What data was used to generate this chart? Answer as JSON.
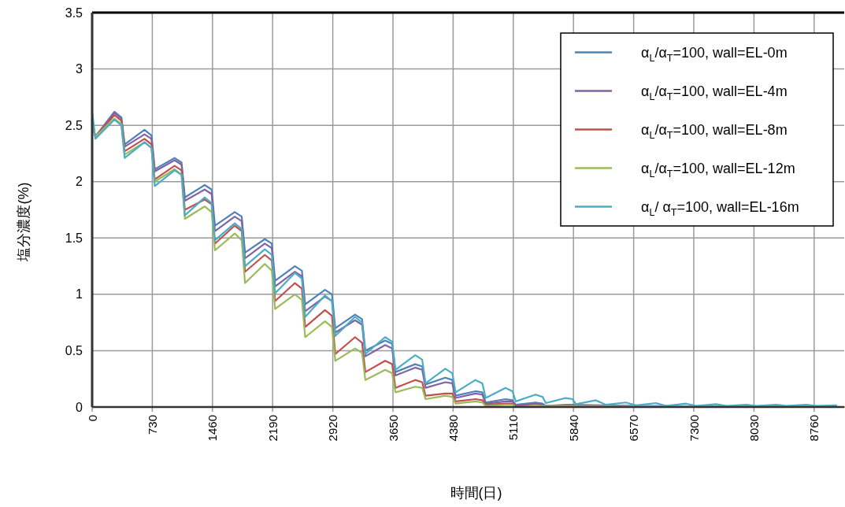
{
  "chart_data": {
    "type": "line",
    "xlabel": "時間(日)",
    "ylabel": "塩分濃度(%)",
    "xlim": [
      0,
      9125
    ],
    "ylim": [
      0,
      3.5
    ],
    "xticks": [
      0,
      730,
      1460,
      2190,
      2920,
      3650,
      4380,
      5110,
      5840,
      6570,
      7300,
      8030,
      8760
    ],
    "yticks": [
      0,
      0.5,
      1,
      1.5,
      2,
      2.5,
      3,
      3.5
    ],
    "grid": true,
    "legend": "top right",
    "series": [
      {
        "name": "α$_{L}$/α$_{T}$=100, wall=EL-0m",
        "color": "#4f81bd",
        "x": [
          0,
          40,
          270,
          355,
          395,
          635,
          720,
          760,
          1000,
          1085,
          1125,
          1365,
          1450,
          1490,
          1730,
          1815,
          1855,
          2095,
          2180,
          2220,
          2460,
          2545,
          2585,
          2825,
          2910,
          2950,
          3190,
          3275,
          3315,
          3555,
          3640,
          3680,
          3920,
          4005,
          4045,
          4285,
          4370,
          4410,
          4650,
          4735,
          4775,
          5015,
          5100,
          5140,
          5380,
          5465,
          5505,
          5745,
          5830,
          6600,
          9125
        ],
        "values": [
          2.5,
          2.4,
          2.62,
          2.57,
          2.33,
          2.46,
          2.41,
          2.11,
          2.21,
          2.17,
          1.86,
          1.97,
          1.93,
          1.61,
          1.73,
          1.69,
          1.37,
          1.49,
          1.45,
          1.12,
          1.25,
          1.21,
          0.91,
          1.04,
          1.0,
          0.7,
          0.82,
          0.78,
          0.5,
          0.59,
          0.56,
          0.31,
          0.38,
          0.36,
          0.2,
          0.26,
          0.24,
          0.1,
          0.14,
          0.13,
          0.04,
          0.07,
          0.06,
          0.02,
          0.04,
          0.03,
          0.01,
          0.02,
          0.02,
          0.01,
          0.0
        ]
      },
      {
        "name": "α$_{L}$/α$_{T}$=100, wall=EL-4m",
        "color": "#8064a2",
        "x": [
          0,
          40,
          270,
          355,
          395,
          635,
          720,
          760,
          1000,
          1085,
          1125,
          1365,
          1450,
          1490,
          1730,
          1815,
          1855,
          2095,
          2180,
          2220,
          2460,
          2545,
          2585,
          2825,
          2910,
          2950,
          3190,
          3275,
          3315,
          3555,
          3640,
          3680,
          3920,
          4005,
          4045,
          4285,
          4370,
          4410,
          4650,
          4735,
          4775,
          5015,
          5100,
          5140,
          5380,
          5465,
          5505,
          5745,
          5830,
          9125
        ],
        "values": [
          2.5,
          2.4,
          2.61,
          2.56,
          2.31,
          2.42,
          2.38,
          2.09,
          2.19,
          2.15,
          1.83,
          1.93,
          1.89,
          1.56,
          1.69,
          1.65,
          1.32,
          1.45,
          1.41,
          1.07,
          1.2,
          1.16,
          0.85,
          0.98,
          0.94,
          0.66,
          0.77,
          0.73,
          0.45,
          0.55,
          0.52,
          0.28,
          0.35,
          0.33,
          0.17,
          0.22,
          0.21,
          0.08,
          0.12,
          0.11,
          0.03,
          0.05,
          0.05,
          0.01,
          0.03,
          0.02,
          0.01,
          0.01,
          0.01,
          0.0
        ]
      },
      {
        "name": "α$_{L}$/α$_{T}$=100, wall=EL-8m",
        "color": "#c0504d",
        "x": [
          0,
          40,
          270,
          355,
          395,
          635,
          720,
          760,
          1000,
          1085,
          1125,
          1365,
          1450,
          1490,
          1730,
          1815,
          1855,
          2095,
          2180,
          2220,
          2460,
          2545,
          2585,
          2825,
          2910,
          2950,
          3190,
          3275,
          3315,
          3555,
          3640,
          3680,
          3920,
          4005,
          4045,
          4285,
          4370,
          4410,
          4650,
          4735,
          4775,
          5015,
          5100,
          5140,
          5380,
          5465,
          9125
        ],
        "values": [
          2.5,
          2.4,
          2.59,
          2.54,
          2.27,
          2.38,
          2.33,
          2.02,
          2.14,
          2.1,
          1.75,
          1.84,
          1.8,
          1.45,
          1.61,
          1.56,
          1.2,
          1.35,
          1.3,
          0.94,
          1.1,
          1.05,
          0.71,
          0.86,
          0.81,
          0.47,
          0.62,
          0.57,
          0.31,
          0.41,
          0.38,
          0.17,
          0.24,
          0.22,
          0.1,
          0.12,
          0.12,
          0.05,
          0.07,
          0.06,
          0.02,
          0.03,
          0.03,
          0.01,
          0.01,
          0.01,
          0.0
        ]
      },
      {
        "name": "α$_{L}$/α$_{T}$=100, wall=EL-12m",
        "color": "#9bbb59",
        "x": [
          0,
          40,
          270,
          355,
          395,
          635,
          720,
          760,
          1000,
          1085,
          1125,
          1365,
          1450,
          1490,
          1730,
          1815,
          1855,
          2095,
          2180,
          2220,
          2460,
          2545,
          2585,
          2825,
          2910,
          2950,
          3190,
          3275,
          3315,
          3555,
          3640,
          3680,
          3920,
          4005,
          4045,
          4285,
          4370,
          4410,
          4650,
          4735,
          4775,
          5015,
          5100,
          5140,
          5380,
          5465,
          9125
        ],
        "values": [
          2.5,
          2.4,
          2.56,
          2.51,
          2.24,
          2.35,
          2.3,
          2.0,
          2.11,
          2.06,
          1.67,
          1.78,
          1.73,
          1.39,
          1.54,
          1.48,
          1.1,
          1.27,
          1.21,
          0.87,
          1.0,
          0.95,
          0.62,
          0.76,
          0.71,
          0.41,
          0.52,
          0.48,
          0.24,
          0.33,
          0.3,
          0.13,
          0.18,
          0.17,
          0.07,
          0.1,
          0.09,
          0.03,
          0.05,
          0.04,
          0.01,
          0.02,
          0.02,
          0.0,
          0.01,
          0.01,
          0.0
        ]
      },
      {
        "name": "α$_{L}$/ α$_{T}$=100, wall=EL-16m",
        "color": "#4bacc6",
        "x": [
          0,
          40,
          270,
          355,
          395,
          635,
          720,
          760,
          1000,
          1085,
          1125,
          1365,
          1450,
          1490,
          1730,
          1815,
          1855,
          2095,
          2180,
          2220,
          2460,
          2545,
          2585,
          2825,
          2910,
          2950,
          3190,
          3275,
          3315,
          3555,
          3640,
          3680,
          3920,
          4005,
          4045,
          4285,
          4370,
          4410,
          4650,
          4735,
          4775,
          5015,
          5100,
          5140,
          5380,
          5465,
          5505,
          5745,
          5830,
          5870,
          6110,
          6235,
          6475,
          6600,
          6840,
          6965,
          7205,
          7330,
          7570,
          7695,
          7935,
          8060,
          8300,
          8425,
          8665,
          8790,
          9030
        ],
        "values": [
          2.62,
          2.38,
          2.55,
          2.5,
          2.21,
          2.35,
          2.3,
          1.96,
          2.1,
          2.06,
          1.7,
          1.86,
          1.81,
          1.48,
          1.63,
          1.58,
          1.25,
          1.4,
          1.35,
          1.01,
          1.19,
          1.14,
          0.8,
          0.99,
          0.94,
          0.63,
          0.8,
          0.75,
          0.47,
          0.62,
          0.58,
          0.33,
          0.46,
          0.42,
          0.21,
          0.34,
          0.3,
          0.13,
          0.24,
          0.21,
          0.08,
          0.17,
          0.14,
          0.05,
          0.11,
          0.09,
          0.035,
          0.08,
          0.07,
          0.025,
          0.06,
          0.02,
          0.04,
          0.015,
          0.035,
          0.01,
          0.03,
          0.01,
          0.025,
          0.01,
          0.02,
          0.01,
          0.02,
          0.01,
          0.02,
          0.01,
          0.015
        ]
      }
    ]
  }
}
